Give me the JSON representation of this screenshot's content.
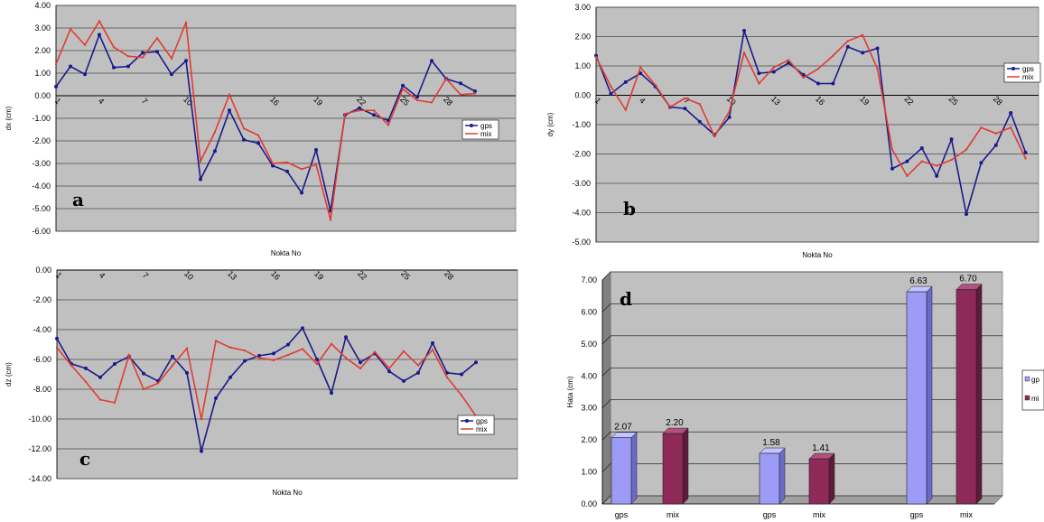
{
  "chart_data": [
    {
      "type": "line",
      "panel_tag": "a",
      "xlabel": "Nokta No",
      "ylabel": "dx (cm)",
      "ylim": [
        -6,
        4
      ],
      "yticks": [
        "4.00",
        "3.00",
        "2.00",
        "1.00",
        "0.00",
        "-1.00",
        "-2.00",
        "-3.00",
        "-4.00",
        "-5.00",
        "-6.00"
      ],
      "xticks": [
        "1",
        "4",
        "7",
        "10",
        "16",
        "19",
        "22",
        "25",
        "28"
      ],
      "legend": "right",
      "grid": true,
      "series": [
        {
          "name": "gps",
          "color": "#1a1a8c",
          "x": [
            1,
            2,
            3,
            4,
            5,
            6,
            7,
            8,
            9,
            10,
            11,
            12,
            13,
            14,
            15,
            16,
            17,
            18,
            19,
            20,
            21,
            22,
            23,
            24,
            25,
            26,
            27,
            28,
            29,
            30
          ],
          "values": [
            0.4,
            1.3,
            0.95,
            2.7,
            1.25,
            1.3,
            1.9,
            1.95,
            0.95,
            1.55,
            -3.7,
            -2.45,
            -0.65,
            -1.95,
            -2.1,
            -3.1,
            -3.35,
            -4.3,
            -2.4,
            -5.1,
            -0.85,
            -0.55,
            -0.85,
            -1.1,
            0.45,
            -0.05,
            1.55,
            0.75,
            0.55,
            0.2
          ]
        },
        {
          "name": "mix",
          "color": "#e03c31",
          "x": [
            1,
            2,
            3,
            4,
            5,
            6,
            7,
            8,
            9,
            10,
            11,
            12,
            13,
            14,
            15,
            16,
            17,
            18,
            19,
            20,
            21,
            22,
            23,
            24,
            25,
            26,
            27,
            28,
            29,
            30
          ],
          "values": [
            1.4,
            2.95,
            2.25,
            3.3,
            2.15,
            1.75,
            1.7,
            2.55,
            1.65,
            3.25,
            -2.9,
            -1.6,
            0.05,
            -1.45,
            -1.75,
            -3.0,
            -2.95,
            -3.25,
            -3.05,
            -5.5,
            -0.8,
            -0.65,
            -0.65,
            -1.3,
            0.3,
            -0.2,
            -0.3,
            0.75,
            0.05,
            0.1
          ]
        }
      ]
    },
    {
      "type": "line",
      "panel_tag": "b",
      "xlabel": "Nokta No",
      "ylabel": "dy (cm)",
      "ylim": [
        -5,
        3
      ],
      "yticks": [
        "3.00",
        "2.00",
        "1.00",
        "0.00",
        "-1.00",
        "-2.00",
        "-3.00",
        "-4.00",
        "-5.00"
      ],
      "xticks": [
        "1",
        "4",
        "7",
        "10",
        "13",
        "16",
        "19",
        "22",
        "25",
        "28"
      ],
      "legend": "right",
      "grid": true,
      "series": [
        {
          "name": "gps",
          "color": "#1a1a8c",
          "x": [
            1,
            2,
            3,
            4,
            5,
            6,
            7,
            8,
            9,
            10,
            11,
            12,
            13,
            14,
            15,
            16,
            17,
            18,
            19,
            20,
            21,
            22,
            23,
            24,
            25,
            26,
            27,
            28,
            29,
            30
          ],
          "values": [
            1.35,
            0.05,
            0.45,
            0.75,
            0.3,
            -0.4,
            -0.45,
            -0.9,
            -1.35,
            -0.75,
            2.2,
            0.75,
            0.8,
            1.1,
            0.7,
            0.4,
            0.4,
            1.65,
            1.45,
            1.6,
            -2.5,
            -2.25,
            -1.8,
            -2.75,
            -1.5,
            -4.05,
            -2.3,
            -1.7,
            -0.6,
            -1.95
          ]
        },
        {
          "name": "mix",
          "color": "#e03c31",
          "x": [
            1,
            2,
            3,
            4,
            5,
            6,
            7,
            8,
            9,
            10,
            11,
            12,
            13,
            14,
            15,
            16,
            17,
            18,
            19,
            20,
            21,
            22,
            23,
            24,
            25,
            26,
            27,
            28,
            29,
            30
          ],
          "values": [
            1.3,
            0.3,
            -0.5,
            0.95,
            0.35,
            -0.4,
            -0.1,
            -0.3,
            -1.4,
            -0.55,
            1.45,
            0.4,
            0.95,
            1.2,
            0.6,
            0.9,
            1.35,
            1.85,
            2.05,
            0.9,
            -1.85,
            -2.75,
            -2.25,
            -2.4,
            -2.2,
            -1.85,
            -1.1,
            -1.3,
            -1.1,
            -2.15
          ]
        }
      ]
    },
    {
      "type": "line",
      "panel_tag": "c",
      "xlabel": "Nokta No",
      "ylabel": "dz (cm)",
      "ylim": [
        -14,
        0
      ],
      "yticks": [
        "0.00",
        "-2.00",
        "-4.00",
        "-6.00",
        "-8.00",
        "-10.00",
        "-12.00",
        "-14.00"
      ],
      "xticks": [
        "1",
        "4",
        "7",
        "10",
        "13",
        "16",
        "19",
        "22",
        "25",
        "28"
      ],
      "legend": "bottom-right",
      "grid": true,
      "series": [
        {
          "name": "gps",
          "color": "#1a1a8c",
          "x": [
            1,
            2,
            3,
            4,
            5,
            6,
            7,
            8,
            9,
            10,
            11,
            12,
            13,
            14,
            15,
            16,
            17,
            18,
            19,
            20,
            21,
            22,
            23,
            24,
            25,
            26,
            27,
            28,
            29,
            30
          ],
          "values": [
            -4.6,
            -6.3,
            -6.6,
            -7.2,
            -6.3,
            -5.8,
            -6.95,
            -7.45,
            -5.8,
            -6.9,
            -12.15,
            -8.6,
            -7.2,
            -6.1,
            -5.75,
            -5.6,
            -5.0,
            -3.9,
            -6.0,
            -8.25,
            -4.5,
            -6.2,
            -5.6,
            -6.8,
            -7.45,
            -6.9,
            -4.9,
            -6.9,
            -7.0,
            -6.2
          ]
        },
        {
          "name": "mix",
          "color": "#e03c31",
          "x": [
            1,
            2,
            3,
            4,
            5,
            6,
            7,
            8,
            9,
            10,
            11,
            12,
            13,
            14,
            15,
            16,
            17,
            18,
            19,
            20,
            21,
            22,
            23,
            24,
            25,
            26,
            27,
            28,
            29,
            30
          ],
          "values": [
            -5.2,
            -6.4,
            -7.5,
            -8.7,
            -8.9,
            -5.7,
            -8.0,
            -7.6,
            -6.4,
            -5.25,
            -10.0,
            -4.75,
            -5.2,
            -5.4,
            -5.9,
            -6.05,
            -5.7,
            -5.3,
            -6.3,
            -4.95,
            -5.9,
            -6.6,
            -5.5,
            -6.6,
            -5.45,
            -6.4,
            -5.35,
            -7.2,
            -8.4,
            -9.8
          ]
        }
      ]
    },
    {
      "type": "bar",
      "panel_tag": "d",
      "ylabel": "Hata (cm)",
      "ylim": [
        0,
        7
      ],
      "yticks": [
        "7.00",
        "6.00",
        "5.00",
        "4.00",
        "3.00",
        "2.00",
        "1.00",
        "0.00"
      ],
      "categories": [
        "gps",
        "mix",
        "gps",
        "mix",
        "gps",
        "mix"
      ],
      "groups": [
        [
          0,
          1
        ],
        [
          2,
          3
        ],
        [
          4,
          5
        ]
      ],
      "values": [
        2.07,
        2.2,
        1.58,
        1.41,
        6.63,
        6.7
      ],
      "value_labels": [
        "2.07",
        "2.20",
        "1.58",
        "1.41",
        "6.63",
        "6.70"
      ],
      "legend_labels": [
        "gp",
        "mi"
      ],
      "legend": "right",
      "colors": {
        "gps": "#9c9cf6",
        "mix": "#8e2a58"
      },
      "grid": true
    }
  ]
}
